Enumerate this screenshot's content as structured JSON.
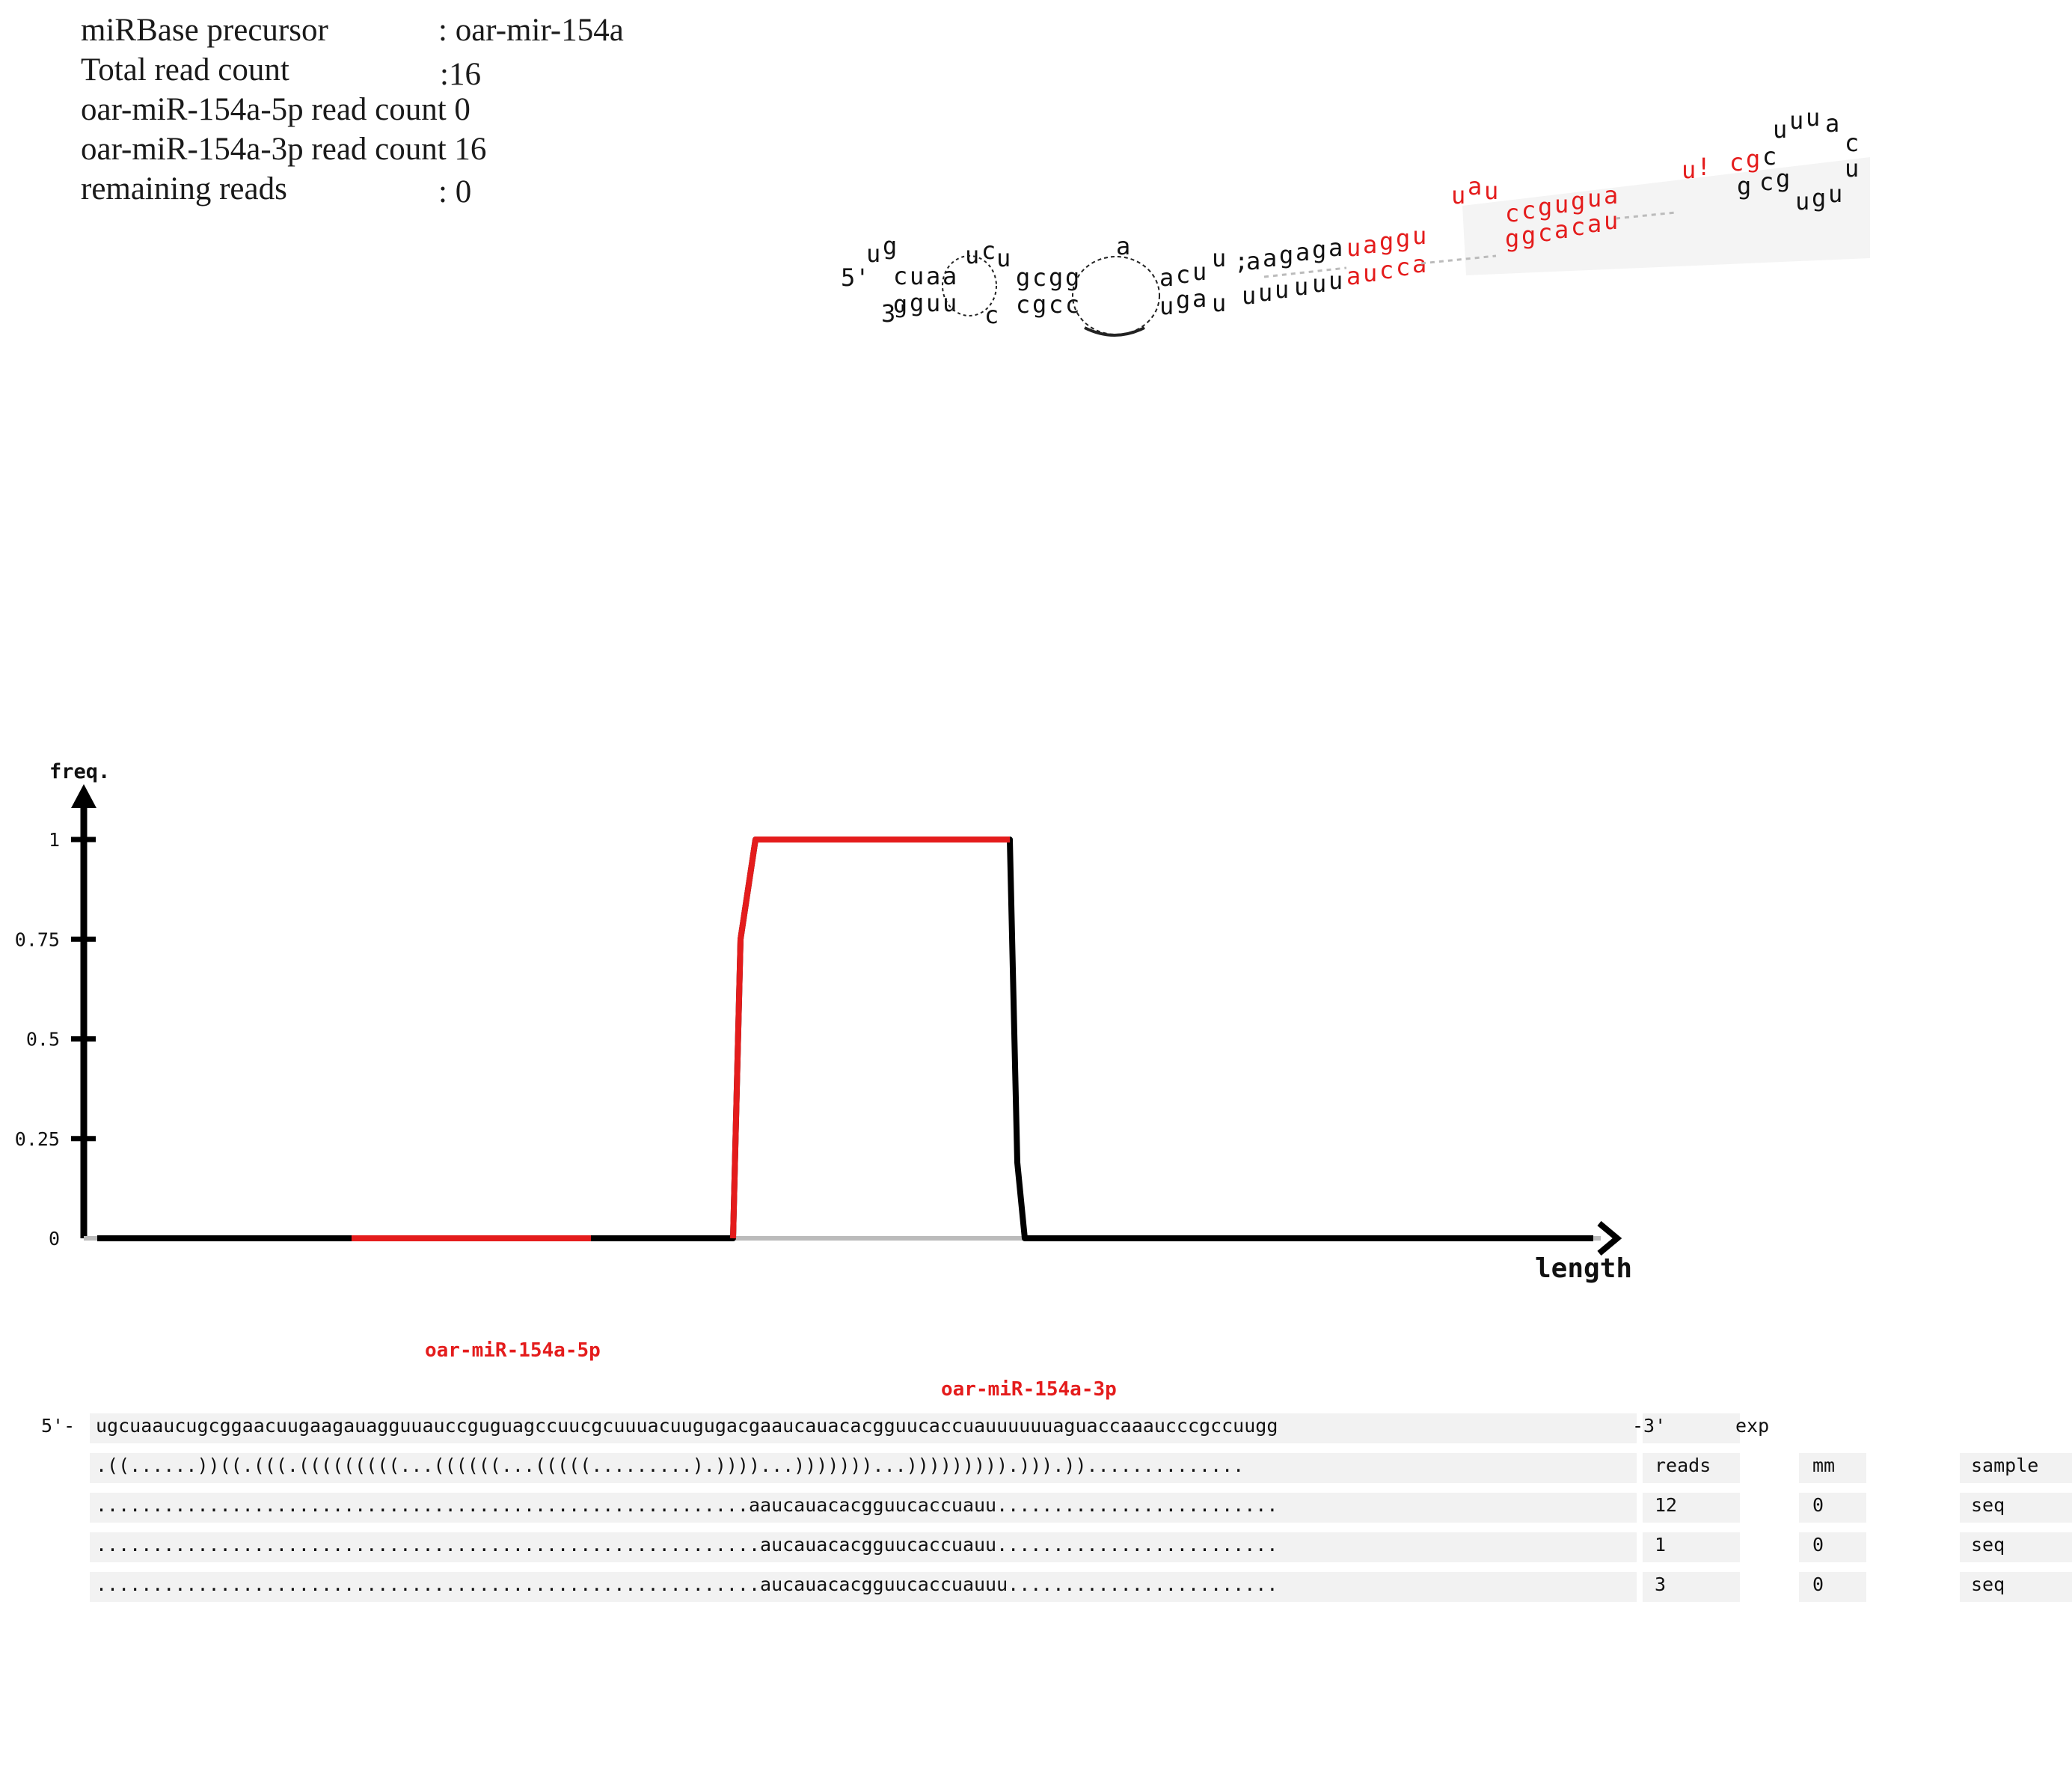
{
  "info": {
    "precursor_label": "miRBase precursor",
    "precursor_value": ": oar-mir-154a",
    "total_label": "Total read count",
    "total_value": ":16",
    "p5_label": "oar-miR-154a-5p read count 0",
    "p3_label": "oar-miR-154a-3p read count 16",
    "remaining_label": "remaining reads",
    "remaining_value": ": 0"
  },
  "hairpin": {
    "five_prime": "5'",
    "three_prime": "3'"
  },
  "chart_data": {
    "type": "line",
    "ylabel": "freq.",
    "xlabel": "length",
    "yticks": [
      "0",
      "0.25",
      "0.5",
      "0.75",
      "1"
    ],
    "ylim": [
      0,
      1
    ],
    "x_range": [
      0,
      101
    ],
    "mature_labels": {
      "p5": "oar-miR-154a-5p",
      "p3": "oar-miR-154a-3p"
    },
    "regions": {
      "p5": [
        17,
        33
      ],
      "p3": [
        43,
        61
      ]
    },
    "series": [
      {
        "x": [
          0,
          42.5,
          43,
          44,
          61,
          61.5,
          62,
          100
        ],
        "y": [
          0,
          0,
          0.75,
          1,
          1,
          0.19,
          0,
          0
        ]
      }
    ],
    "colors": {
      "mature": "#e41c1c",
      "line": "#000000",
      "gray": "#bbbbbb"
    }
  },
  "alignment": {
    "prefix": "5'-",
    "sequence": "ugcuaaucugcggaacuugaagauagguuauccguguagccuucgcuuuacuugugacgaaucauacacgguucaccuauuuuuuaguaccaaaucccgccuugg",
    "suffix": "-3'",
    "exp_header": "exp",
    "structure": ".((......))((.(((.(((((((((...((((((...(((((.........).))))...)))))))...))))))))).))).))..............",
    "reads_header": "reads",
    "mm_header": "mm",
    "sample_header": "sample",
    "rows": [
      {
        "seq": "..........................................................aaucauacacgguucaccuauu.........................",
        "reads": "12",
        "mm": "0",
        "sample": "seq"
      },
      {
        "seq": "...........................................................aucauacacgguucaccuauu.........................",
        "reads": "1",
        "mm": "0",
        "sample": "seq"
      },
      {
        "seq": "...........................................................aucauacacgguucaccuauuu........................",
        "reads": "3",
        "mm": "0",
        "sample": "seq"
      }
    ]
  }
}
